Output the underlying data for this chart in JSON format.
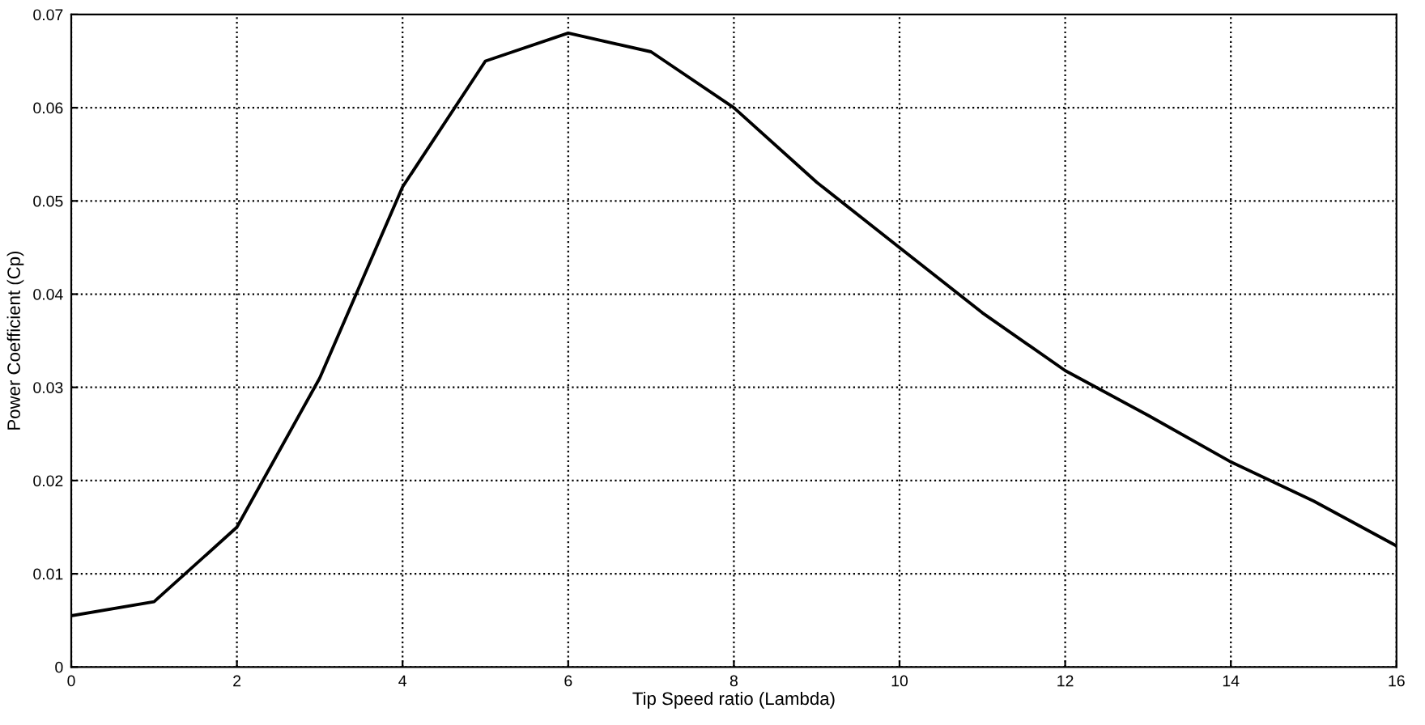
{
  "chart_data": {
    "type": "line",
    "xlabel": "Tip Speed ratio (Lambda)",
    "ylabel": "Power Coefficient (Cp)",
    "x": [
      0,
      1,
      2,
      3,
      4,
      5,
      6,
      7,
      8,
      9,
      10,
      11,
      12,
      13,
      14,
      15,
      16
    ],
    "series": [
      {
        "color": "#000000",
        "values": [
          0.0055,
          0.007,
          0.015,
          0.031,
          0.0515,
          0.065,
          0.068,
          0.066,
          0.06,
          0.052,
          0.045,
          0.038,
          0.0318,
          0.027,
          0.022,
          0.0178,
          0.013
        ]
      }
    ],
    "xlim": [
      0,
      16
    ],
    "ylim": [
      0,
      0.07
    ],
    "xticks": [
      0,
      2,
      4,
      6,
      8,
      10,
      12,
      14,
      16
    ],
    "yticks": [
      0,
      0.01,
      0.02,
      0.03,
      0.04,
      0.05,
      0.06,
      0.07
    ],
    "grid": true,
    "line_style": "solid",
    "marker": "none"
  }
}
